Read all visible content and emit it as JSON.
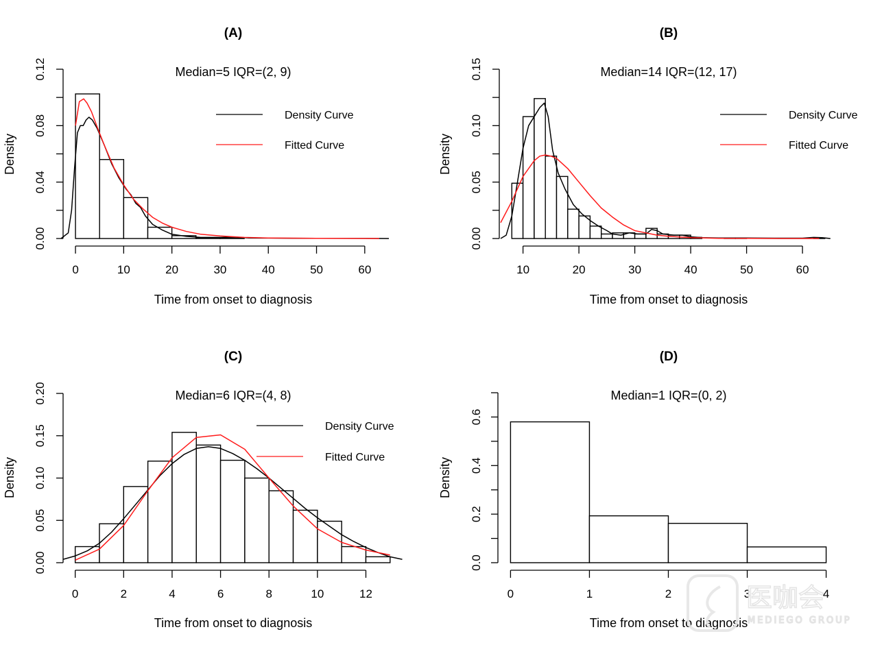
{
  "figure": {
    "watermark": {
      "main": "医咖会",
      "sub": "MEDIEGO GROUP"
    }
  },
  "chart_data": [
    {
      "id": "A",
      "type": "bar",
      "title": "(A)",
      "annotation": "Median=5   IQR=(2, 9)",
      "xlabel": "Time from onset to diagnosis",
      "ylabel": "Density",
      "xlim": [
        -2,
        66
      ],
      "ylim": [
        0,
        0.12
      ],
      "xticks": [
        0,
        10,
        20,
        30,
        40,
        50,
        60
      ],
      "xtick_labels": [
        "0",
        "10",
        "20",
        "30",
        "40",
        "50",
        "60"
      ],
      "yticks": [
        0,
        0.02,
        0.04,
        0.06,
        0.08,
        0.1,
        0.12
      ],
      "ytick_labels": [
        "0.00",
        "",
        "0.04",
        "",
        "0.08",
        "",
        "0.12"
      ],
      "bins": [
        [
          0,
          5
        ],
        [
          5,
          10
        ],
        [
          10,
          15
        ],
        [
          15,
          20
        ],
        [
          20,
          25
        ],
        [
          25,
          30
        ],
        [
          30,
          35
        ]
      ],
      "values": [
        0.1025,
        0.056,
        0.029,
        0.008,
        0.002,
        0.0006,
        0.0003
      ],
      "series": [
        {
          "name": "Density Curve",
          "color": "#000000",
          "x": [
            -3,
            -1.5,
            -0.8,
            -0.2,
            0.4,
            1.0,
            1.6,
            2.2,
            2.8,
            3.5,
            4.5,
            6,
            7.5,
            9,
            10.5,
            11.5,
            12.5,
            13.5,
            14.5,
            16,
            18,
            20,
            23,
            26,
            30,
            33,
            36,
            40,
            45,
            50,
            55,
            60,
            65
          ],
          "y": [
            0.0,
            0.004,
            0.02,
            0.05,
            0.075,
            0.08,
            0.08,
            0.084,
            0.086,
            0.084,
            0.078,
            0.066,
            0.053,
            0.043,
            0.035,
            0.031,
            0.025,
            0.022,
            0.016,
            0.01,
            0.006,
            0.003,
            0.0015,
            0.0008,
            0.0008,
            0.001,
            0.0004,
            0.0003,
            0.0002,
            0.0001,
            0.0001,
            0.0001,
            0.0
          ]
        },
        {
          "name": "Fitted Curve",
          "color": "#ff1a1a",
          "x": [
            0,
            0.8,
            1.7,
            2.4,
            3.3,
            4.5,
            6,
            8,
            10,
            12,
            14,
            16,
            18,
            20,
            23,
            26,
            30,
            35,
            40,
            50,
            63
          ],
          "y": [
            0.08,
            0.097,
            0.099,
            0.096,
            0.09,
            0.079,
            0.066,
            0.05,
            0.038,
            0.028,
            0.021,
            0.015,
            0.011,
            0.008,
            0.005,
            0.003,
            0.0018,
            0.0008,
            0.0004,
            0.0001,
            0.0
          ]
        }
      ],
      "legend": {
        "entries": [
          "Density Curve",
          "Fitted Curve"
        ],
        "placement": "top-right"
      }
    },
    {
      "id": "B",
      "type": "bar",
      "title": "(B)",
      "annotation": "Median=14   IQR=(12, 17)",
      "xlabel": "Time from onset to diagnosis",
      "ylabel": "Density",
      "xlim": [
        6,
        66
      ],
      "ylim": [
        0,
        0.15
      ],
      "xticks": [
        10,
        20,
        30,
        40,
        50,
        60
      ],
      "xtick_labels": [
        "10",
        "20",
        "30",
        "40",
        "50",
        "60"
      ],
      "yticks": [
        0,
        0.025,
        0.05,
        0.075,
        0.1,
        0.125,
        0.15
      ],
      "ytick_labels": [
        "0.00",
        "",
        "0.05",
        "",
        "0.10",
        "",
        "0.15"
      ],
      "bins": [
        [
          8,
          10
        ],
        [
          10,
          12
        ],
        [
          12,
          14
        ],
        [
          14,
          16
        ],
        [
          16,
          18
        ],
        [
          18,
          20
        ],
        [
          20,
          22
        ],
        [
          22,
          24
        ],
        [
          24,
          26
        ],
        [
          26,
          28
        ],
        [
          28,
          30
        ],
        [
          30,
          32
        ],
        [
          32,
          34
        ],
        [
          34,
          36
        ],
        [
          36,
          38
        ],
        [
          38,
          40
        ],
        [
          40,
          42
        ],
        [
          46,
          48
        ],
        [
          48,
          50
        ],
        [
          62,
          64
        ]
      ],
      "values": [
        0.049,
        0.108,
        0.124,
        0.073,
        0.055,
        0.026,
        0.02,
        0.011,
        0.004,
        0.005,
        0.005,
        0.004,
        0.009,
        0.004,
        0.003,
        0.003,
        0.001,
        0.0005,
        0.0005,
        0.0005
      ],
      "series": [
        {
          "name": "Density Curve",
          "color": "#000000",
          "x": [
            6,
            7,
            8,
            9,
            10,
            11,
            12,
            13,
            13.8,
            14.5,
            15.3,
            16.3,
            17.5,
            19,
            20.5,
            22,
            23.5,
            25,
            26,
            27.5,
            29,
            30.5,
            32,
            33,
            34,
            35,
            37,
            38.5,
            40,
            42,
            45,
            50,
            55,
            60,
            62,
            63.5,
            65
          ],
          "y": [
            0.0,
            0.003,
            0.02,
            0.05,
            0.08,
            0.1,
            0.108,
            0.116,
            0.12,
            0.108,
            0.078,
            0.058,
            0.044,
            0.03,
            0.022,
            0.016,
            0.011,
            0.007,
            0.004,
            0.003,
            0.005,
            0.004,
            0.004,
            0.008,
            0.007,
            0.004,
            0.003,
            0.003,
            0.0015,
            0.0008,
            0.0004,
            0.0005,
            0.0003,
            0.0003,
            0.001,
            0.0008,
            0.0
          ]
        },
        {
          "name": "Fitted Curve",
          "color": "#ff1a1a",
          "x": [
            6,
            8,
            10,
            12,
            13,
            14,
            15,
            16,
            18,
            20,
            22,
            24,
            26,
            28,
            30,
            32,
            34,
            36,
            40,
            45,
            50,
            56,
            63
          ],
          "y": [
            0.014,
            0.033,
            0.055,
            0.069,
            0.073,
            0.074,
            0.073,
            0.071,
            0.062,
            0.05,
            0.038,
            0.027,
            0.019,
            0.012,
            0.007,
            0.005,
            0.003,
            0.002,
            0.0008,
            0.0002,
            0.0001,
            0.0,
            0.0
          ]
        }
      ],
      "legend": {
        "entries": [
          "Density Curve",
          "Fitted Curve"
        ],
        "placement": "top-right"
      }
    },
    {
      "id": "C",
      "type": "bar",
      "title": "(C)",
      "annotation": "Median=6   IQR=(4, 8)",
      "xlabel": "Time from onset to diagnosis",
      "ylabel": "Density",
      "xlim": [
        -0.5,
        13.6
      ],
      "ylim": [
        0,
        0.2
      ],
      "xticks": [
        0,
        2,
        4,
        6,
        8,
        10,
        12
      ],
      "xtick_labels": [
        "0",
        "2",
        "4",
        "6",
        "8",
        "10",
        "12"
      ],
      "yticks": [
        0,
        0.05,
        0.1,
        0.15,
        0.2
      ],
      "ytick_labels": [
        "0.00",
        "0.05",
        "0.10",
        "0.15",
        "0.20"
      ],
      "bins": [
        [
          0,
          1
        ],
        [
          1,
          2
        ],
        [
          2,
          3
        ],
        [
          3,
          4
        ],
        [
          4,
          5
        ],
        [
          5,
          6
        ],
        [
          6,
          7
        ],
        [
          7,
          8
        ],
        [
          8,
          9
        ],
        [
          9,
          10
        ],
        [
          10,
          11
        ],
        [
          11,
          12
        ],
        [
          12,
          13
        ]
      ],
      "values": [
        0.019,
        0.046,
        0.09,
        0.12,
        0.154,
        0.139,
        0.121,
        0.1,
        0.085,
        0.062,
        0.049,
        0.019,
        0.007
      ],
      "series": [
        {
          "name": "Density Curve",
          "color": "#000000",
          "x": [
            -0.5,
            0,
            0.5,
            1,
            1.5,
            2,
            2.5,
            3,
            3.5,
            4,
            4.5,
            5,
            5.5,
            6,
            6.5,
            7,
            7.5,
            8,
            8.5,
            9,
            9.5,
            10,
            10.5,
            11,
            11.5,
            12,
            12.5,
            13,
            13.5
          ],
          "y": [
            0.004,
            0.008,
            0.014,
            0.023,
            0.036,
            0.052,
            0.069,
            0.086,
            0.103,
            0.117,
            0.128,
            0.135,
            0.137,
            0.135,
            0.129,
            0.121,
            0.111,
            0.1,
            0.088,
            0.076,
            0.064,
            0.053,
            0.043,
            0.033,
            0.025,
            0.018,
            0.012,
            0.007,
            0.004
          ]
        },
        {
          "name": "Fitted Curve",
          "color": "#ff1a1a",
          "x": [
            0,
            1,
            2,
            3,
            4,
            5,
            6,
            7,
            8,
            9,
            10,
            11,
            12,
            13
          ],
          "y": [
            0.003,
            0.016,
            0.044,
            0.085,
            0.124,
            0.148,
            0.151,
            0.134,
            0.1,
            0.067,
            0.04,
            0.024,
            0.015,
            0.009
          ]
        }
      ],
      "legend": {
        "entries": [
          "Density Curve",
          "Fitted Curve"
        ],
        "placement": "top-right"
      }
    },
    {
      "id": "D",
      "type": "bar",
      "title": "(D)",
      "annotation": "Median=1   IQR=(0, 2)",
      "xlabel": "Time from onset to diagnosis",
      "ylabel": "Density",
      "xlim": [
        -0.16,
        4.16
      ],
      "ylim": [
        0,
        0.7
      ],
      "xticks": [
        0,
        1,
        2,
        3,
        4
      ],
      "xtick_labels": [
        "0",
        "1",
        "2",
        "3",
        "4"
      ],
      "yticks": [
        0,
        0.1,
        0.2,
        0.3,
        0.4,
        0.5,
        0.6,
        0.7
      ],
      "ytick_labels": [
        "0.0",
        "",
        "0.2",
        "",
        "0.4",
        "",
        "0.6",
        ""
      ],
      "bins": [
        [
          0,
          1
        ],
        [
          1,
          2
        ],
        [
          2,
          3
        ],
        [
          3,
          4
        ]
      ],
      "values": [
        0.58,
        0.193,
        0.162,
        0.065
      ],
      "series": [],
      "legend": null
    }
  ]
}
